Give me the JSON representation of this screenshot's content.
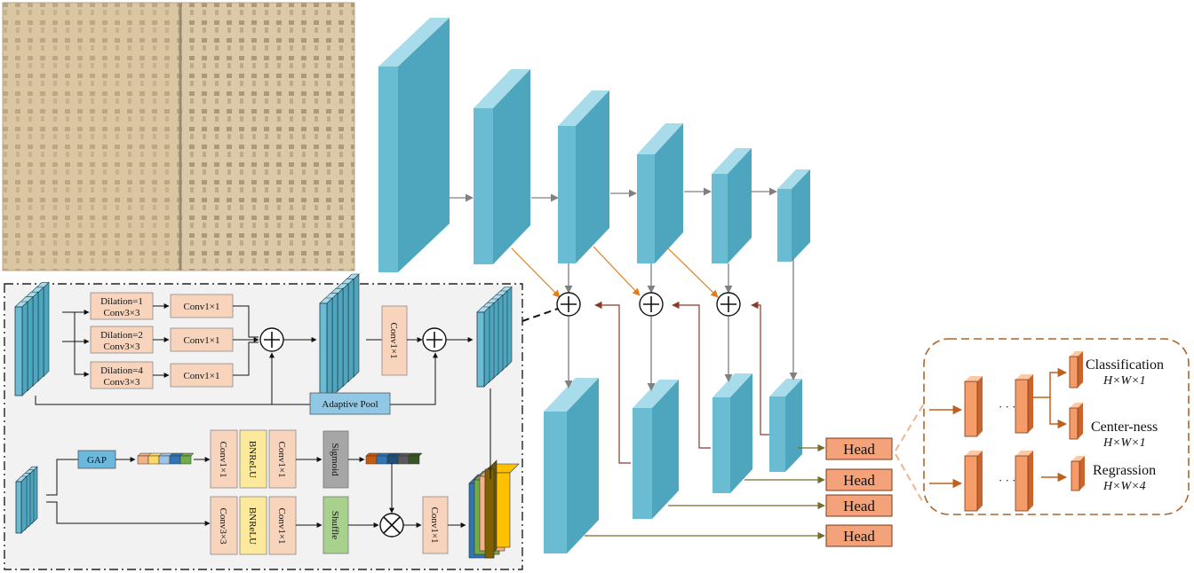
{
  "colors": {
    "cube_front": "#69bcd2",
    "cube_top": "#a9dcea",
    "cube_side": "#4ea6be",
    "head_fill": "#f3a27a",
    "head_stroke": "#7a3a18",
    "orange_arrow": "#e07c1d",
    "dark_red_arrow": "#8b3a2a",
    "gray_arrow": "#808080",
    "olive_line": "#7a6b2a",
    "module_bg": "#f2f2f2",
    "conv_fill": "#f8d4bd",
    "bnrelu_fill": "#fde99b",
    "sigmoid_fill": "#a6a6a6",
    "shuffle_fill": "#a9d18e",
    "adaptive_fill": "#8fc7e4",
    "gap_fill": "#6ab8dc",
    "head_panel_stroke": "#b0642a"
  },
  "image_panel": {
    "name": "ancient-chinese-dictionary-page"
  },
  "module_top": {
    "dilation_boxes": [
      {
        "line1": "Dilation=1",
        "line2": "Conv3×3"
      },
      {
        "line1": "Dilation=2",
        "line2": "Conv3×3"
      },
      {
        "line1": "Dilation=4",
        "line2": "Conv3×3"
      }
    ],
    "conv1x1_label": "Conv1×1",
    "adaptive_pool_label": "Adaptive Pool",
    "vertical_conv_label": "Conv1×1"
  },
  "module_bottom": {
    "gap_label": "GAP",
    "upper_row": [
      "Conv1×1",
      "BNReLU",
      "Conv1×1",
      "Sigmoid"
    ],
    "lower_row": [
      "Conv3×3",
      "BNReLU",
      "Conv1×1",
      "Shuffle"
    ],
    "final_conv": "Conv1×1",
    "attention_colors": [
      "#f4b183",
      "#ffd966",
      "#9dc3e6",
      "#2e75b6",
      "#70ad47"
    ],
    "sigmoid_vector_colors": [
      "#c55a11",
      "#2e75b6",
      "#1f4e79",
      "#595959",
      "#375623"
    ]
  },
  "heads": {
    "label": "Head"
  },
  "head_detail": {
    "outputs": [
      {
        "title": "Classification",
        "dim": "H×W×1"
      },
      {
        "title": "Center-ness",
        "dim": "H×W×1"
      },
      {
        "title": "Regrassion",
        "dim": "H×W×4"
      }
    ]
  }
}
